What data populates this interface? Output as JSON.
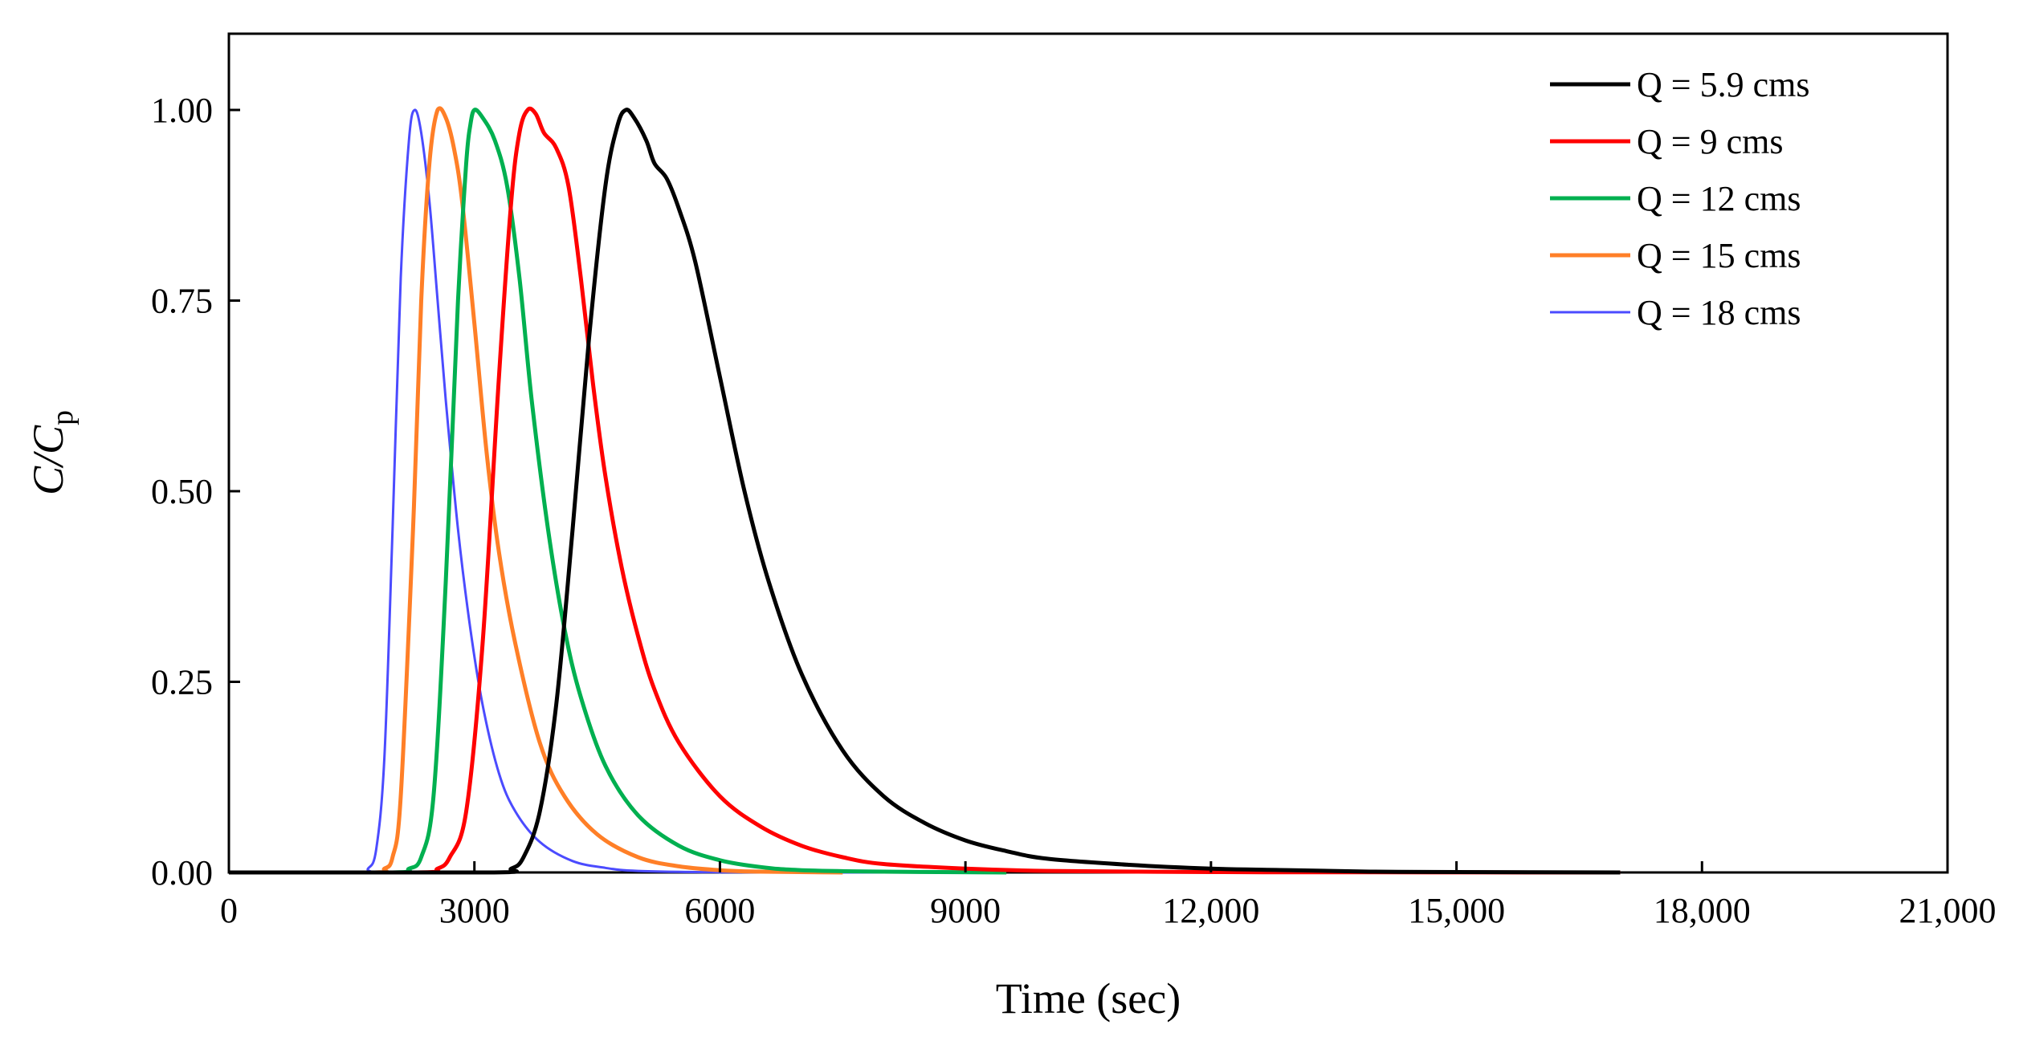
{
  "chart_data": {
    "type": "line",
    "title": "",
    "xlabel": "Time (sec)",
    "ylabel": {
      "main": "C/C",
      "sub": "p"
    },
    "xlim": [
      0,
      21000
    ],
    "ylim": [
      0,
      1.1
    ],
    "xticks": [
      0,
      3000,
      6000,
      9000,
      12000,
      15000,
      18000,
      21000
    ],
    "xtick_labels": [
      "0",
      "3000",
      "6000",
      "9000",
      "12,000",
      "15,000",
      "18,000",
      "21,000"
    ],
    "yticks": [
      0,
      0.25,
      0.5,
      0.75,
      1.0
    ],
    "ytick_labels": [
      "0.00",
      "0.25",
      "0.50",
      "0.75",
      "1.00"
    ],
    "grid": false,
    "legend_position": "top-right",
    "series": [
      {
        "name": "Q = 5.9 cms",
        "color": "#000000",
        "x": [
          0,
          3200,
          3450,
          3600,
          3800,
          4000,
          4200,
          4400,
          4600,
          4750,
          4850,
          4950,
          5100,
          5200,
          5350,
          5500,
          5700,
          6000,
          6300,
          6600,
          7000,
          7500,
          8000,
          8500,
          9000,
          9500,
          10000,
          11000,
          12000,
          13000,
          14000,
          15000,
          17000
        ],
        "y": [
          0,
          0,
          0.005,
          0.02,
          0.08,
          0.22,
          0.45,
          0.7,
          0.9,
          0.98,
          1.0,
          0.99,
          0.96,
          0.93,
          0.91,
          0.87,
          0.8,
          0.65,
          0.5,
          0.38,
          0.26,
          0.16,
          0.1,
          0.065,
          0.042,
          0.028,
          0.018,
          0.01,
          0.005,
          0.003,
          0.001,
          0.0005,
          0
        ]
      },
      {
        "name": "Q = 9 cms",
        "color": "#ff0000",
        "x": [
          0,
          2300,
          2550,
          2700,
          2900,
          3100,
          3300,
          3450,
          3550,
          3650,
          3750,
          3850,
          4000,
          4150,
          4300,
          4450,
          4600,
          4800,
          5000,
          5200,
          5500,
          6000,
          6500,
          7000,
          7500,
          8000,
          9000,
          10000,
          12000,
          14000,
          17000
        ],
        "y": [
          0,
          0,
          0.005,
          0.02,
          0.08,
          0.3,
          0.65,
          0.88,
          0.97,
          1.0,
          0.995,
          0.97,
          0.95,
          0.9,
          0.78,
          0.64,
          0.52,
          0.4,
          0.31,
          0.24,
          0.17,
          0.1,
          0.06,
          0.035,
          0.02,
          0.011,
          0.005,
          0.002,
          0.0005,
          0.0002,
          0
        ]
      },
      {
        "name": "Q = 12 cms",
        "color": "#00b050",
        "x": [
          0,
          2000,
          2200,
          2350,
          2500,
          2650,
          2800,
          2900,
          2950,
          3000,
          3100,
          3250,
          3400,
          3550,
          3700,
          3900,
          4100,
          4300,
          4600,
          5000,
          5500,
          6000,
          6500,
          7000,
          8000,
          9500
        ],
        "y": [
          0,
          0,
          0.005,
          0.02,
          0.1,
          0.38,
          0.75,
          0.93,
          0.98,
          1.0,
          0.99,
          0.96,
          0.9,
          0.78,
          0.62,
          0.45,
          0.32,
          0.23,
          0.14,
          0.075,
          0.035,
          0.016,
          0.007,
          0.003,
          0.001,
          0
        ]
      },
      {
        "name": "Q = 15 cms",
        "color": "#ff7f27",
        "x": [
          0,
          1750,
          1900,
          2000,
          2100,
          2250,
          2350,
          2450,
          2550,
          2650,
          2750,
          2850,
          3000,
          3150,
          3300,
          3500,
          3800,
          4100,
          4500,
          5000,
          5500,
          6000,
          6500,
          7500
        ],
        "y": [
          0,
          0,
          0.005,
          0.02,
          0.1,
          0.45,
          0.75,
          0.93,
          1.0,
          0.99,
          0.95,
          0.88,
          0.72,
          0.55,
          0.42,
          0.3,
          0.17,
          0.1,
          0.05,
          0.02,
          0.008,
          0.003,
          0.001,
          0
        ]
      },
      {
        "name": "Q = 18 cms",
        "color": "#4b4bff",
        "x": [
          0,
          1600,
          1700,
          1800,
          1900,
          2000,
          2100,
          2200,
          2270,
          2350,
          2450,
          2550,
          2650,
          2800,
          2950,
          3100,
          3300,
          3500,
          3800,
          4200,
          4600,
          5000,
          6000,
          8000
        ],
        "y": [
          0,
          0,
          0.005,
          0.03,
          0.15,
          0.45,
          0.78,
          0.96,
          1.0,
          0.97,
          0.88,
          0.75,
          0.62,
          0.45,
          0.32,
          0.22,
          0.13,
          0.08,
          0.04,
          0.015,
          0.006,
          0.002,
          0.0003,
          0
        ]
      }
    ]
  }
}
